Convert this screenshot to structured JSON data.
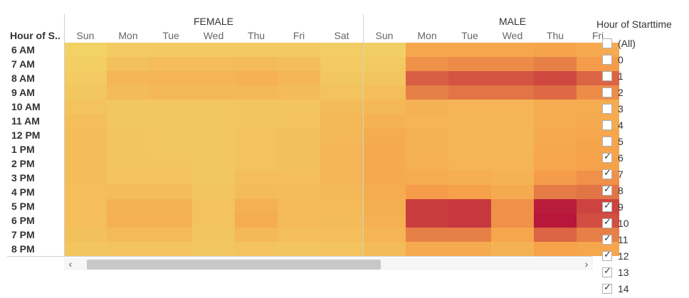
{
  "row_header_title": "Hour of S..",
  "legend": {
    "title": "Hour of Starttime",
    "items": [
      {
        "label": "(All)",
        "checked": false
      },
      {
        "label": "0",
        "checked": false
      },
      {
        "label": "1",
        "checked": false
      },
      {
        "label": "2",
        "checked": false
      },
      {
        "label": "3",
        "checked": false
      },
      {
        "label": "4",
        "checked": false
      },
      {
        "label": "5",
        "checked": false
      },
      {
        "label": "6",
        "checked": true
      },
      {
        "label": "7",
        "checked": true
      },
      {
        "label": "8",
        "checked": true
      },
      {
        "label": "9",
        "checked": true
      },
      {
        "label": "10",
        "checked": true
      },
      {
        "label": "11",
        "checked": true
      },
      {
        "label": "12",
        "checked": true
      },
      {
        "label": "13",
        "checked": true
      },
      {
        "label": "14",
        "checked": true
      }
    ]
  },
  "scrollbar": {
    "left_arrow": "‹",
    "right_arrow": "›"
  },
  "chart_data": {
    "type": "heatmap",
    "groups": [
      "FEMALE",
      "MALE"
    ],
    "days": [
      "Sun",
      "Mon",
      "Tue",
      "Wed",
      "Thu",
      "Fri",
      "Sat"
    ],
    "visible_male_days": [
      "Sun",
      "Mon",
      "Tue",
      "Wed",
      "Thu",
      "Fri"
    ],
    "hours": [
      "6 AM",
      "7 AM",
      "8 AM",
      "9 AM",
      "10 AM",
      "11 AM",
      "12 PM",
      "1 PM",
      "2 PM",
      "3 PM",
      "4 PM",
      "5 PM",
      "6 PM",
      "7 PM",
      "8 PM"
    ],
    "color_scale": {
      "low": "#f2d366",
      "mid": "#f6a24b",
      "high": "#b8163a"
    },
    "intensity": {
      "FEMALE": [
        [
          0.02,
          0.08,
          0.1,
          0.1,
          0.1,
          0.1,
          0.06
        ],
        [
          0.05,
          0.18,
          0.22,
          0.22,
          0.24,
          0.2,
          0.08
        ],
        [
          0.08,
          0.3,
          0.32,
          0.32,
          0.35,
          0.3,
          0.12
        ],
        [
          0.12,
          0.25,
          0.28,
          0.28,
          0.28,
          0.24,
          0.16
        ],
        [
          0.16,
          0.12,
          0.12,
          0.12,
          0.14,
          0.14,
          0.24
        ],
        [
          0.2,
          0.12,
          0.12,
          0.12,
          0.14,
          0.16,
          0.28
        ],
        [
          0.22,
          0.14,
          0.12,
          0.12,
          0.16,
          0.18,
          0.28
        ],
        [
          0.22,
          0.14,
          0.12,
          0.12,
          0.16,
          0.18,
          0.3
        ],
        [
          0.22,
          0.14,
          0.14,
          0.12,
          0.16,
          0.18,
          0.3
        ],
        [
          0.22,
          0.16,
          0.16,
          0.12,
          0.2,
          0.2,
          0.3
        ],
        [
          0.2,
          0.22,
          0.22,
          0.14,
          0.24,
          0.22,
          0.28
        ],
        [
          0.2,
          0.34,
          0.34,
          0.16,
          0.36,
          0.26,
          0.26
        ],
        [
          0.2,
          0.36,
          0.36,
          0.16,
          0.4,
          0.26,
          0.24
        ],
        [
          0.18,
          0.26,
          0.26,
          0.14,
          0.28,
          0.2,
          0.2
        ],
        [
          0.14,
          0.16,
          0.16,
          0.12,
          0.16,
          0.14,
          0.16
        ]
      ],
      "MALE": [
        [
          0.04,
          0.46,
          0.46,
          0.46,
          0.48,
          0.42
        ],
        [
          0.1,
          0.56,
          0.58,
          0.58,
          0.62,
          0.52
        ],
        [
          0.14,
          0.74,
          0.78,
          0.78,
          0.82,
          0.72
        ],
        [
          0.2,
          0.62,
          0.66,
          0.66,
          0.7,
          0.58
        ],
        [
          0.28,
          0.34,
          0.32,
          0.32,
          0.4,
          0.4
        ],
        [
          0.34,
          0.32,
          0.3,
          0.3,
          0.4,
          0.42
        ],
        [
          0.4,
          0.34,
          0.3,
          0.3,
          0.42,
          0.46
        ],
        [
          0.42,
          0.34,
          0.3,
          0.3,
          0.44,
          0.48
        ],
        [
          0.42,
          0.36,
          0.32,
          0.32,
          0.46,
          0.5
        ],
        [
          0.42,
          0.4,
          0.38,
          0.34,
          0.52,
          0.56
        ],
        [
          0.4,
          0.52,
          0.5,
          0.42,
          0.64,
          0.66
        ],
        [
          0.38,
          0.86,
          0.88,
          0.56,
          0.98,
          0.84
        ],
        [
          0.36,
          0.86,
          0.88,
          0.56,
          1.0,
          0.8
        ],
        [
          0.32,
          0.62,
          0.62,
          0.46,
          0.72,
          0.62
        ],
        [
          0.24,
          0.42,
          0.42,
          0.34,
          0.5,
          0.46
        ]
      ]
    }
  }
}
